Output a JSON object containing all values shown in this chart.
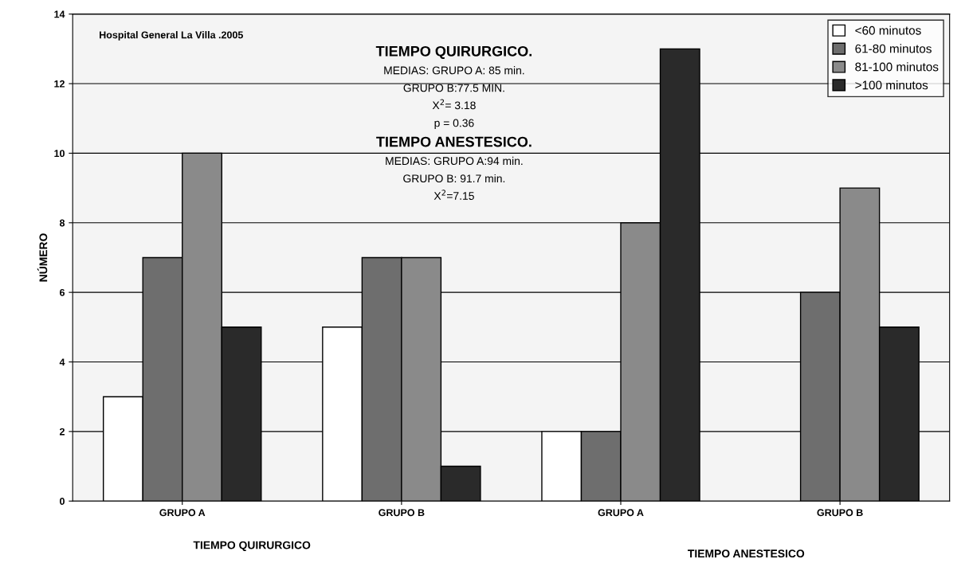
{
  "chart_data": {
    "type": "bar",
    "ylabel": "NÚMERO",
    "categories": [
      "GRUPO A",
      "GRUPO B",
      "GRUPO A",
      "GRUPO B"
    ],
    "series": [
      {
        "name": "<60 minutos",
        "color": "#ffffff",
        "values": [
          3,
          5,
          2,
          0
        ]
      },
      {
        "name": "61-80 minutos",
        "color": "#6e6e6e",
        "values": [
          7,
          7,
          2,
          6
        ]
      },
      {
        "name": "81-100 minutos",
        "color": "#8a8a8a",
        "values": [
          10,
          7,
          8,
          9
        ]
      },
      {
        "name": ">100 minutos",
        "color": "#2a2a2a",
        "values": [
          5,
          1,
          13,
          5
        ]
      }
    ],
    "ylim": [
      0,
      14
    ],
    "yticks": [
      0,
      2,
      4,
      6,
      8,
      10,
      12,
      14
    ],
    "grid": "y",
    "legend": "top right",
    "annotations": [
      "Hospital General La Villa .2005",
      "TIEMPO QUIRURGICO.",
      "MEDIAS: GRUPO A: 85 min.",
      "GRUPO B:77.5 MIN.",
      "X$^{2}$= 3.18",
      "p = 0.36",
      "TIEMPO ANESTESICO.",
      "MEDIAS: GRUPO A:94 min.",
      "GRUPO B: 91.7 min.",
      "X$^{2}$=7.15",
      "TIEMPO QUIRURGICO",
      "TIEMPO ANESTESICO"
    ]
  }
}
